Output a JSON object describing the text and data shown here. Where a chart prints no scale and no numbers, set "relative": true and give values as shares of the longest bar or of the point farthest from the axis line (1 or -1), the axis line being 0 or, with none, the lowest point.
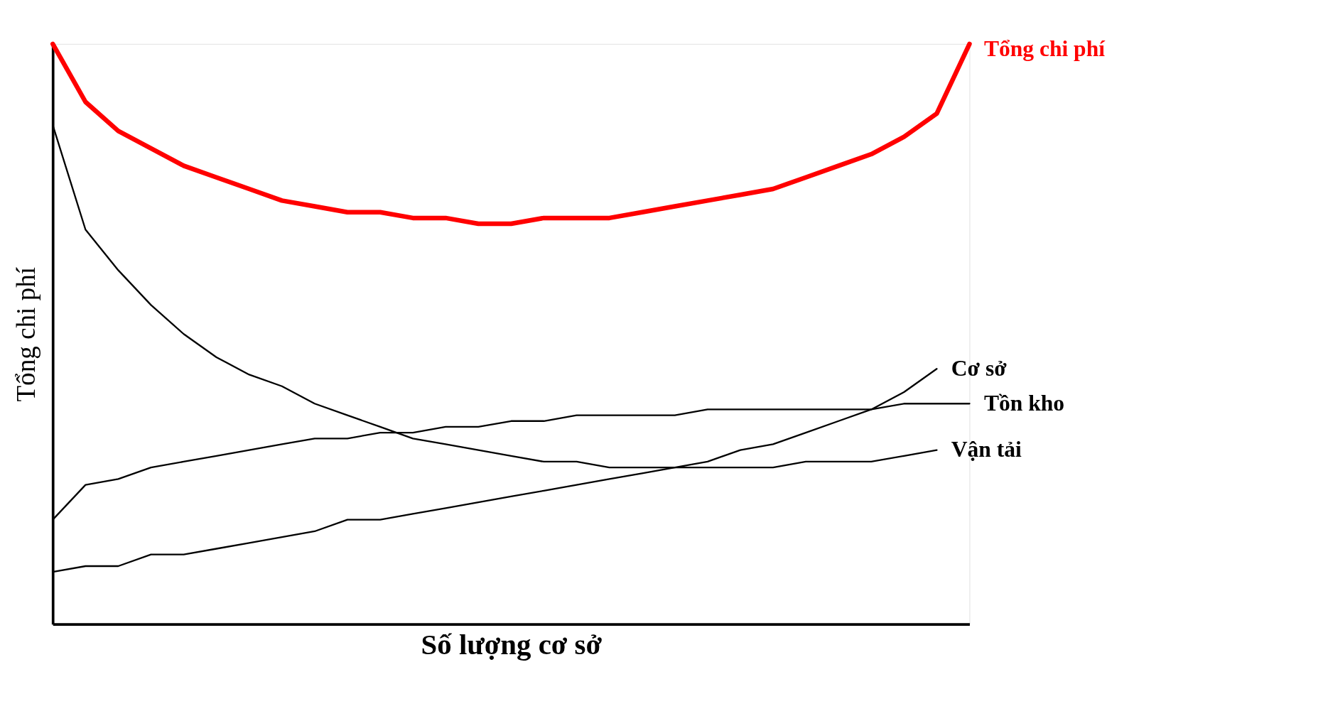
{
  "chart_data": {
    "type": "line",
    "relative": true,
    "xlabel": "Số lượng cơ sở",
    "ylabel": "Tổng chi phí",
    "legend": false,
    "categories": [
      null,
      null,
      null,
      null,
      null,
      null,
      null,
      null,
      null,
      null,
      null,
      null,
      null,
      null,
      null,
      null,
      null,
      null,
      null,
      null,
      null,
      null,
      null,
      null,
      null,
      null,
      null,
      null,
      null
    ],
    "series": [
      {
        "name": "Tổng chi phí",
        "color": "#ff0000",
        "values": [
          1.0,
          0.9,
          0.85,
          0.82,
          0.79,
          0.77,
          0.75,
          0.73,
          0.72,
          0.71,
          0.71,
          0.7,
          0.7,
          0.69,
          0.69,
          0.7,
          0.7,
          0.7,
          0.71,
          0.72,
          0.73,
          0.74,
          0.75,
          0.77,
          0.79,
          0.81,
          0.84,
          0.88,
          1.0
        ]
      },
      {
        "name": "Cơ sở",
        "color": "#000000",
        "values": [
          0.09,
          0.1,
          0.1,
          0.12,
          0.12,
          0.13,
          0.14,
          0.15,
          0.16,
          0.18,
          0.18,
          0.19,
          0.2,
          0.21,
          0.22,
          0.23,
          0.24,
          0.25,
          0.26,
          0.27,
          0.28,
          0.3,
          0.31,
          0.33,
          0.35,
          0.37,
          0.4,
          0.44,
          null
        ]
      },
      {
        "name": "Tồn kho",
        "color": "#000000",
        "values": [
          0.18,
          0.24,
          0.25,
          0.27,
          0.28,
          0.29,
          0.3,
          0.31,
          0.32,
          0.32,
          0.33,
          0.33,
          0.34,
          0.34,
          0.35,
          0.35,
          0.36,
          0.36,
          0.36,
          0.36,
          0.37,
          0.37,
          0.37,
          0.37,
          0.37,
          0.37,
          0.38,
          0.38,
          0.38
        ]
      },
      {
        "name": "Vận tải",
        "color": "#000000",
        "values": [
          0.86,
          0.68,
          0.61,
          0.55,
          0.5,
          0.46,
          0.43,
          0.41,
          0.38,
          0.36,
          0.34,
          0.32,
          0.31,
          0.3,
          0.29,
          0.28,
          0.28,
          0.27,
          0.27,
          0.27,
          0.27,
          0.27,
          0.27,
          0.28,
          0.28,
          0.28,
          0.29,
          0.3,
          null
        ]
      }
    ]
  }
}
